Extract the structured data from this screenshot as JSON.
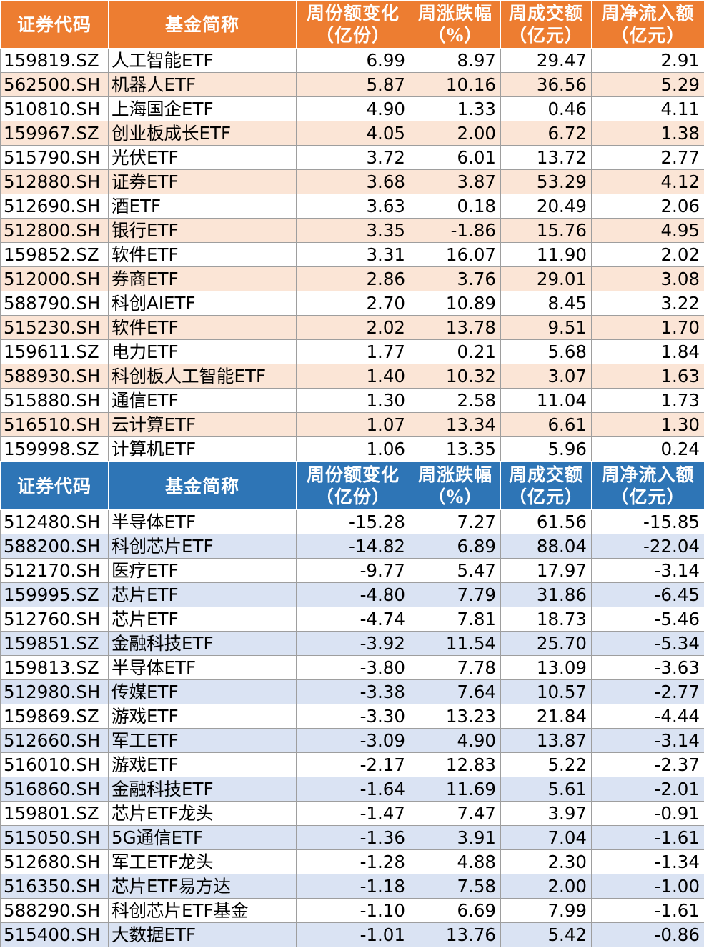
{
  "headers": {
    "code": "证券代码",
    "name": "基金简称",
    "share_change": [
      "周份额变化",
      "（亿份）"
    ],
    "pct_change": [
      "周涨跌幅",
      "（%）"
    ],
    "turnover": [
      "周成交额",
      "（亿元）"
    ],
    "net_inflow": [
      "周净流入额",
      "（亿元）"
    ]
  },
  "inflow_rows": [
    [
      "159819.SZ",
      "人工智能ETF",
      "6.99",
      "8.97",
      "29.47",
      "2.91"
    ],
    [
      "562500.SH",
      "机器人ETF",
      "5.87",
      "10.16",
      "36.56",
      "5.29"
    ],
    [
      "510810.SH",
      "上海国企ETF",
      "4.90",
      "1.33",
      "0.46",
      "4.11"
    ],
    [
      "159967.SZ",
      "创业板成长ETF",
      "4.05",
      "2.00",
      "6.72",
      "1.38"
    ],
    [
      "515790.SH",
      "光伏ETF",
      "3.72",
      "6.01",
      "13.72",
      "2.77"
    ],
    [
      "512880.SH",
      "证券ETF",
      "3.68",
      "3.87",
      "53.29",
      "4.12"
    ],
    [
      "512690.SH",
      "酒ETF",
      "3.63",
      "0.18",
      "20.49",
      "2.06"
    ],
    [
      "512800.SH",
      "银行ETF",
      "3.35",
      "-1.86",
      "15.76",
      "4.95"
    ],
    [
      "159852.SZ",
      "软件ETF",
      "3.31",
      "16.07",
      "11.90",
      "2.02"
    ],
    [
      "512000.SH",
      "券商ETF",
      "2.86",
      "3.76",
      "29.01",
      "3.08"
    ],
    [
      "588790.SH",
      "科创AIETF",
      "2.70",
      "10.89",
      "8.45",
      "3.22"
    ],
    [
      "515230.SH",
      "软件ETF",
      "2.02",
      "13.78",
      "9.51",
      "1.70"
    ],
    [
      "159611.SZ",
      "电力ETF",
      "1.77",
      "0.21",
      "5.68",
      "1.84"
    ],
    [
      "588930.SH",
      "科创板人工智能ETF",
      "1.40",
      "10.32",
      "3.07",
      "1.63"
    ],
    [
      "515880.SH",
      "通信ETF",
      "1.30",
      "2.58",
      "11.04",
      "1.73"
    ],
    [
      "516510.SH",
      "云计算ETF",
      "1.07",
      "13.34",
      "6.61",
      "1.30"
    ],
    [
      "159998.SZ",
      "计算机ETF",
      "1.06",
      "13.35",
      "5.96",
      "0.24"
    ]
  ],
  "outflow_rows": [
    [
      "512480.SH",
      "半导体ETF",
      "-15.28",
      "7.27",
      "61.56",
      "-15.85"
    ],
    [
      "588200.SH",
      "科创芯片ETF",
      "-14.82",
      "6.89",
      "88.04",
      "-22.04"
    ],
    [
      "512170.SH",
      "医疗ETF",
      "-9.77",
      "5.47",
      "17.97",
      "-3.14"
    ],
    [
      "159995.SZ",
      "芯片ETF",
      "-4.80",
      "7.79",
      "31.86",
      "-6.45"
    ],
    [
      "512760.SH",
      "芯片ETF",
      "-4.74",
      "7.81",
      "18.73",
      "-5.46"
    ],
    [
      "159851.SZ",
      "金融科技ETF",
      "-3.92",
      "11.54",
      "25.70",
      "-5.34"
    ],
    [
      "159813.SZ",
      "半导体ETF",
      "-3.80",
      "7.78",
      "13.09",
      "-3.63"
    ],
    [
      "512980.SH",
      "传媒ETF",
      "-3.38",
      "7.64",
      "10.57",
      "-2.77"
    ],
    [
      "159869.SZ",
      "游戏ETF",
      "-3.30",
      "13.23",
      "21.84",
      "-4.44"
    ],
    [
      "512660.SH",
      "军工ETF",
      "-3.09",
      "4.90",
      "13.87",
      "-3.14"
    ],
    [
      "516010.SH",
      "游戏ETF",
      "-2.17",
      "12.83",
      "5.22",
      "-2.37"
    ],
    [
      "516860.SH",
      "金融科技ETF",
      "-1.64",
      "11.69",
      "5.61",
      "-2.01"
    ],
    [
      "159801.SZ",
      "芯片ETF龙头",
      "-1.47",
      "7.47",
      "3.97",
      "-0.91"
    ],
    [
      "515050.SH",
      "5G通信ETF",
      "-1.36",
      "3.91",
      "7.04",
      "-1.61"
    ],
    [
      "512680.SH",
      "军工ETF龙头",
      "-1.28",
      "4.88",
      "2.30",
      "-1.34"
    ],
    [
      "516350.SH",
      "芯片ETF易方达",
      "-1.18",
      "7.58",
      "2.00",
      "-1.00"
    ],
    [
      "588290.SH",
      "科创芯片ETF基金",
      "-1.10",
      "6.69",
      "7.99",
      "-1.61"
    ],
    [
      "515400.SH",
      "大数据ETF",
      "-1.01",
      "13.76",
      "5.42",
      "-0.86"
    ]
  ],
  "colors": {
    "inflow_header": "#ed7d31",
    "inflow_band": "#fbe5d6",
    "outflow_header": "#2e75b6",
    "outflow_band": "#dae3f3"
  }
}
